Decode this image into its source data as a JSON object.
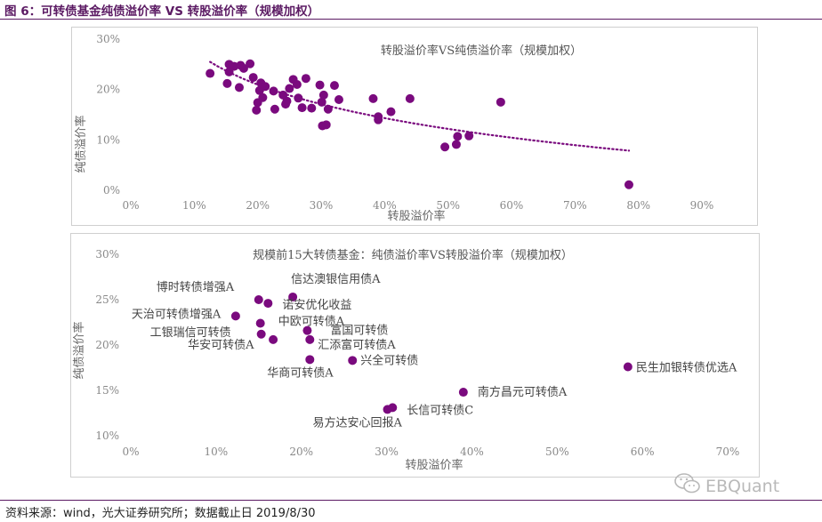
{
  "figure": {
    "title": "图 6：可转债基金纯债溢价率 VS 转股溢价率（规模加权）",
    "source": "资料来源：wind，光大证券研究所；数据截止日 2019/8/30",
    "watermark": "EBQuant",
    "watermark_icon": "wechat-icon",
    "accent_color": "#5b1a63",
    "point_color": "#7a0a7e"
  },
  "chart_data": [
    {
      "type": "scatter",
      "title": "转股溢价率VS纯债溢价率（规模加权）",
      "xlabel": "转股溢价率",
      "ylabel": "纯债溢价率",
      "xlim": [
        0,
        90
      ],
      "ylim": [
        0,
        30
      ],
      "x_ticks": [
        "0%",
        "10%",
        "20%",
        "30%",
        "40%",
        "50%",
        "60%",
        "70%",
        "80%",
        "90%"
      ],
      "y_ticks": [
        "0%",
        "10%",
        "20%",
        "30%"
      ],
      "grid": false,
      "trendline": {
        "style": "dotted",
        "type": "fitted"
      },
      "points": [
        {
          "x": 12.5,
          "y": 23.2
        },
        {
          "x": 15.2,
          "y": 21.2
        },
        {
          "x": 15.5,
          "y": 23.5
        },
        {
          "x": 15.5,
          "y": 25.0
        },
        {
          "x": 16.3,
          "y": 24.6
        },
        {
          "x": 17.1,
          "y": 20.4
        },
        {
          "x": 17.3,
          "y": 24.8
        },
        {
          "x": 17.8,
          "y": 24.2
        },
        {
          "x": 18.8,
          "y": 25.1
        },
        {
          "x": 19.3,
          "y": 22.4
        },
        {
          "x": 19.8,
          "y": 15.9
        },
        {
          "x": 20.0,
          "y": 17.4
        },
        {
          "x": 20.3,
          "y": 19.8
        },
        {
          "x": 20.5,
          "y": 21.3
        },
        {
          "x": 20.8,
          "y": 18.4
        },
        {
          "x": 21.2,
          "y": 20.6
        },
        {
          "x": 22.5,
          "y": 19.7
        },
        {
          "x": 22.7,
          "y": 16.1
        },
        {
          "x": 24.0,
          "y": 18.9
        },
        {
          "x": 24.4,
          "y": 17.1
        },
        {
          "x": 24.6,
          "y": 17.7
        },
        {
          "x": 25.0,
          "y": 20.2
        },
        {
          "x": 25.6,
          "y": 22.0
        },
        {
          "x": 26.2,
          "y": 21.0
        },
        {
          "x": 26.4,
          "y": 18.3
        },
        {
          "x": 27.0,
          "y": 16.4
        },
        {
          "x": 27.6,
          "y": 22.2
        },
        {
          "x": 28.5,
          "y": 16.3
        },
        {
          "x": 29.8,
          "y": 20.9
        },
        {
          "x": 30.1,
          "y": 17.5
        },
        {
          "x": 30.2,
          "y": 12.8
        },
        {
          "x": 30.4,
          "y": 18.9
        },
        {
          "x": 30.8,
          "y": 13.0
        },
        {
          "x": 31.1,
          "y": 16.1
        },
        {
          "x": 32.1,
          "y": 20.8
        },
        {
          "x": 32.8,
          "y": 18.0
        },
        {
          "x": 38.2,
          "y": 18.2
        },
        {
          "x": 39.0,
          "y": 14.6
        },
        {
          "x": 39.0,
          "y": 14.0
        },
        {
          "x": 41.0,
          "y": 15.6
        },
        {
          "x": 44.0,
          "y": 18.2
        },
        {
          "x": 49.5,
          "y": 8.6
        },
        {
          "x": 51.3,
          "y": 9.1
        },
        {
          "x": 51.5,
          "y": 10.7
        },
        {
          "x": 53.3,
          "y": 10.8
        },
        {
          "x": 58.3,
          "y": 17.5
        },
        {
          "x": 78.5,
          "y": 1.1
        }
      ]
    },
    {
      "type": "scatter",
      "title": "规模前15大转债基金：纯债溢价率VS转股溢价率（规模加权）",
      "xlabel": "转股溢价率",
      "ylabel": "纯债溢价率",
      "xlim": [
        0,
        70
      ],
      "ylim": [
        10,
        30
      ],
      "x_ticks": [
        "0%",
        "10%",
        "20%",
        "30%",
        "40%",
        "50%",
        "60%",
        "70%"
      ],
      "y_ticks": [
        "10%",
        "15%",
        "20%",
        "25%",
        "30%"
      ],
      "grid": false,
      "points": [
        {
          "x": 12.3,
          "y": 23.2,
          "label": "天治可转债增强A"
        },
        {
          "x": 15.0,
          "y": 25.0,
          "label": "博时转债增强A"
        },
        {
          "x": 15.2,
          "y": 22.4,
          "label": "中欧可转债A"
        },
        {
          "x": 15.3,
          "y": 21.2,
          "label": "工银瑞信可转债"
        },
        {
          "x": 16.1,
          "y": 24.6,
          "label": "诺安优化收益"
        },
        {
          "x": 16.7,
          "y": 20.6,
          "label": "华安可转债A"
        },
        {
          "x": 19.0,
          "y": 25.3,
          "label": "信达澳银信用债A"
        },
        {
          "x": 20.7,
          "y": 21.6,
          "label": "富国可转债"
        },
        {
          "x": 21.0,
          "y": 20.6,
          "label": "汇添富可转债A"
        },
        {
          "x": 21.0,
          "y": 18.4,
          "label": "华商可转债A"
        },
        {
          "x": 26.0,
          "y": 18.3,
          "label": "兴全可转债"
        },
        {
          "x": 30.1,
          "y": 12.9,
          "label": "易方达安心回报A"
        },
        {
          "x": 30.7,
          "y": 13.1,
          "label": "长信可转债C"
        },
        {
          "x": 39.0,
          "y": 14.8,
          "label": "南方昌元可转债A"
        },
        {
          "x": 58.3,
          "y": 17.6,
          "label": "民生加银转债优选A"
        }
      ]
    }
  ]
}
